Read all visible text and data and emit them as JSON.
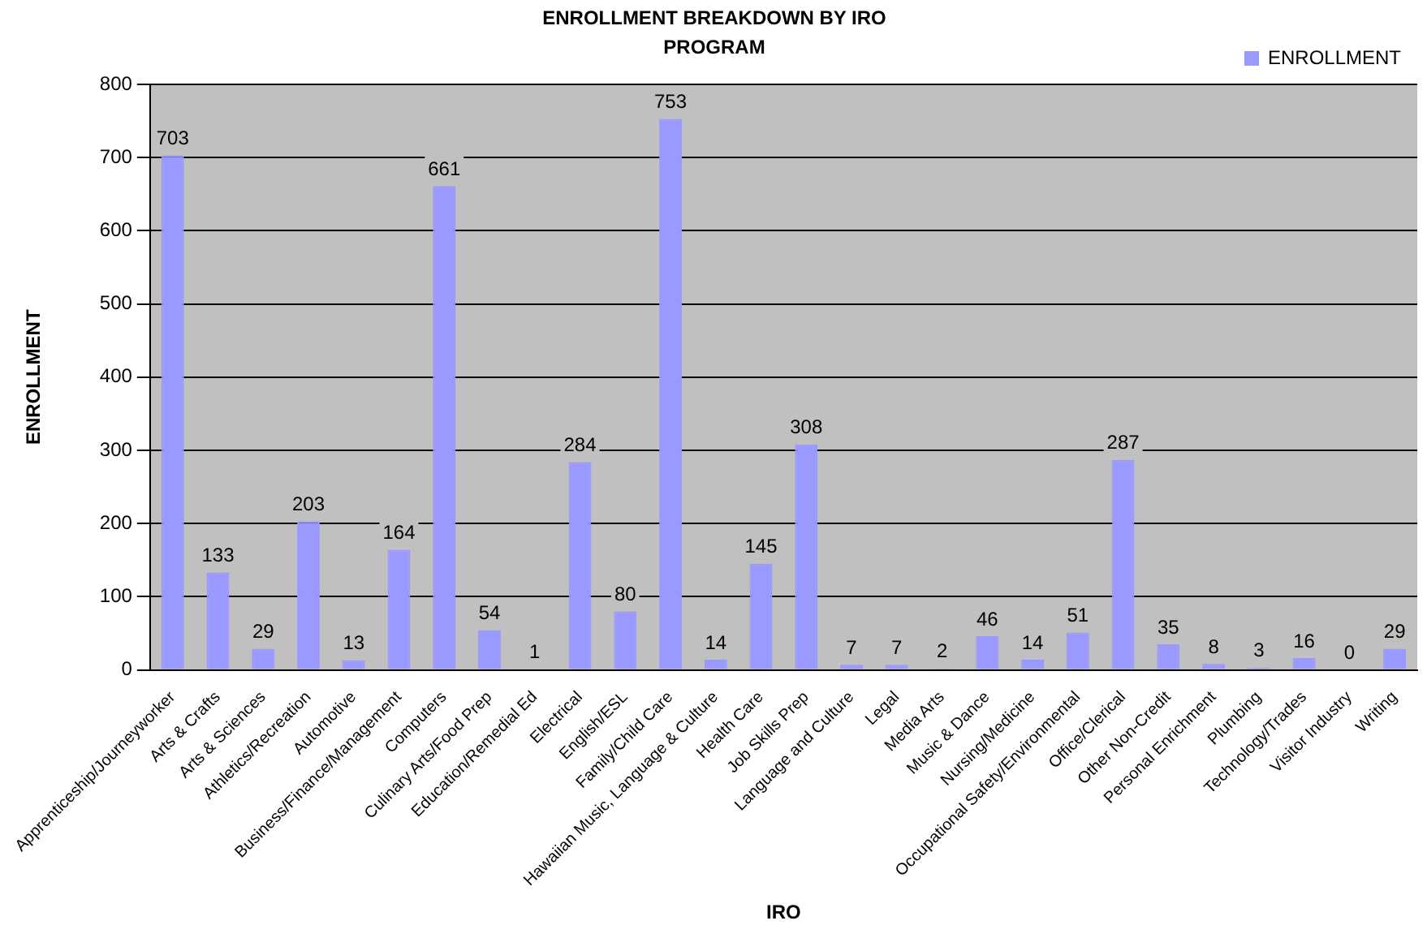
{
  "chart_data": {
    "type": "bar",
    "title": "ENROLLMENT BREAKDOWN BY IRO PROGRAM",
    "xlabel": "IRO",
    "ylabel": "ENROLLMENT",
    "categories": [
      "Apprenticeship/Journeyworker",
      "Arts & Crafts",
      "Arts & Sciences",
      "Athletics/Recreation",
      "Automotive",
      "Business/Finance/Management",
      "Computers",
      "Culinary Arts/Food Prep",
      "Education/Remedial Ed",
      "Electrical",
      "English/ESL",
      "Family/Child Care",
      "Hawaiian Music, Language & Culture",
      "Health Care",
      "Job Skills Prep",
      "Language and Culture",
      "Legal",
      "Media Arts",
      "Music & Dance",
      "Nursing/Medicine",
      "Occupational Safety/Environmental",
      "Office/Clerical",
      "Other Non-Credit",
      "Personal Enrichment",
      "Plumbing",
      "Technology/Trades",
      "Visitor Industry",
      "Writing"
    ],
    "series": [
      {
        "name": "ENROLLMENT",
        "color": "#9999ff",
        "values": [
          703,
          133,
          29,
          203,
          13,
          164,
          661,
          54,
          1,
          284,
          80,
          753,
          14,
          145,
          308,
          7,
          7,
          2,
          46,
          14,
          51,
          287,
          35,
          8,
          3,
          16,
          0,
          29
        ]
      }
    ],
    "ylim": [
      0,
      800
    ],
    "yticks": [
      0,
      100,
      200,
      300,
      400,
      500,
      600,
      700,
      800
    ],
    "grid": "y",
    "legend": "top right",
    "data_labels": true
  }
}
